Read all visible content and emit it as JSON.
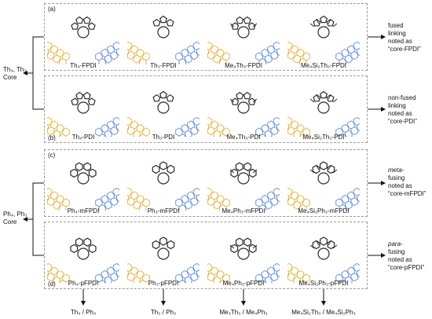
{
  "panels": [
    {
      "label": "(a)",
      "note": [
        "fused",
        "linking",
        "noted as",
        "“core-FPDI”"
      ],
      "captions": [
        "Th₄-FPDI",
        "Th₃-FPDI",
        "Me₄Th₃-FPDI",
        "Me₄Si₂Th₃-FPDI"
      ]
    },
    {
      "label": "(b)",
      "note": [
        "non-fused",
        "linking",
        "noted as",
        "“core-PDI”"
      ],
      "captions": [
        "Th₄-PDI",
        "Th₃-PDI",
        "Me₄Th₃-PDI",
        "Me₄Si₂Th₃-PDI"
      ]
    },
    {
      "label": "(c)",
      "note": [
        "meta-",
        "fusing",
        "noted as",
        "“core-mFPDI”"
      ],
      "captions": [
        "Ph₄-mFPDI",
        "Ph₃-mFPDI",
        "Me₄Ph₃-mFPDI",
        "Me₄Si₂Ph₃-mFPDI"
      ]
    },
    {
      "label": "(d)",
      "note": [
        "para-",
        "fusing",
        "noted as",
        "“core-pFPDI”"
      ],
      "captions": [
        "Ph₄-pFPDI",
        "Ph₃-pFPDI",
        "Me₄Ph₃-pFPDI",
        "Me₄Si₂Ph₃-pFPDI"
      ]
    }
  ],
  "groups": {
    "th_core": [
      "Th₄, Th₃",
      "Core"
    ],
    "ph_core": [
      "Ph₄, Ph₃",
      "Core"
    ]
  },
  "bottom_labels": [
    "Th₄ / Ph₄",
    "Th₃ / Ph₃",
    "Me₄Th₃ / Me₄Ph₃",
    "Me₄Si₂Th₃ / Me₄Si₂Ph₃"
  ],
  "colors": {
    "left_unit": "#e4b84a",
    "right_unit": "#6f93d8",
    "core": "#2a2a2a",
    "border": "#9a9a9a"
  }
}
